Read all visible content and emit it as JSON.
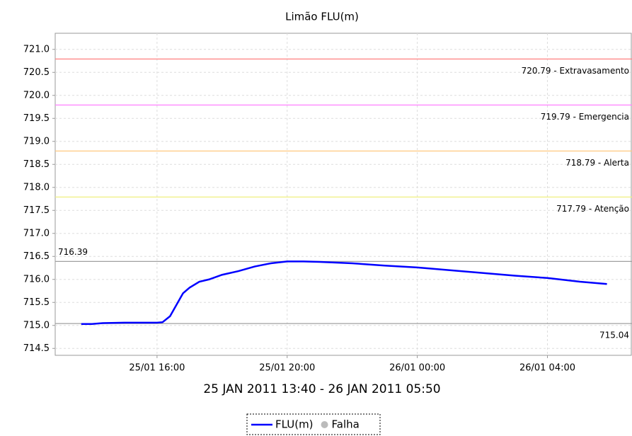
{
  "chart_data": {
    "type": "line",
    "title": "Limão FLU(m)",
    "x_label": "25 JAN 2011 13:40 - 26 JAN 2011 05:50",
    "x": [
      13.67,
      14.0,
      14.33,
      15.0,
      15.5,
      16.0,
      16.17,
      16.4,
      16.6,
      16.8,
      17.0,
      17.3,
      17.6,
      18.0,
      18.5,
      19.0,
      19.5,
      20.0,
      20.5,
      21.0,
      22.0,
      23.0,
      24.0,
      25.0,
      26.0,
      27.0,
      28.0,
      29.0,
      29.83
    ],
    "series": [
      {
        "name": "FLU(m)",
        "color": "#0000ff",
        "marker": "line",
        "values": [
          715.03,
          715.03,
          715.05,
          715.06,
          715.06,
          715.06,
          715.07,
          715.2,
          715.45,
          715.7,
          715.82,
          715.95,
          716.0,
          716.1,
          716.18,
          716.28,
          716.35,
          716.39,
          716.39,
          716.38,
          716.35,
          716.3,
          716.26,
          716.2,
          716.14,
          716.08,
          716.03,
          715.95,
          715.9
        ]
      },
      {
        "name": "Falha",
        "color": "#bbbbbb",
        "marker": "dot",
        "values": [
          null,
          null,
          null,
          null,
          null,
          null,
          null,
          null,
          null,
          null,
          null,
          null,
          null,
          null,
          null,
          null,
          null,
          null,
          null,
          null,
          null,
          null,
          null,
          null,
          null,
          null,
          null,
          null,
          null
        ]
      }
    ],
    "xlim": [
      12.87,
      30.6
    ],
    "xticks": [
      {
        "value": 16,
        "label": "25/01 16:00"
      },
      {
        "value": 20,
        "label": "25/01 20:00"
      },
      {
        "value": 24,
        "label": "26/01 00:00"
      },
      {
        "value": 28,
        "label": "26/01 04:00"
      }
    ],
    "ylim": [
      714.35,
      721.35
    ],
    "yticks": [
      714.5,
      {
        "value": 715,
        "label": "715.0"
      },
      715.5,
      {
        "value": 716,
        "label": "716.0"
      },
      716.5,
      {
        "value": 717,
        "label": "717.0"
      },
      717.5,
      {
        "value": 718,
        "label": "718.0"
      },
      718.5,
      {
        "value": 719,
        "label": "719.0"
      },
      719.5,
      {
        "value": 720,
        "label": "720.0"
      },
      720.5,
      {
        "value": 721,
        "label": "721.0"
      }
    ],
    "grid": true,
    "reference_lines": [
      {
        "value": 720.79,
        "label": "720.79 - Extravasamento",
        "color": "#ff8080",
        "label_corner": "lower-right"
      },
      {
        "value": 719.79,
        "label": "719.79 - Emergencia",
        "color": "#ff80ff",
        "label_corner": "lower-right"
      },
      {
        "value": 718.79,
        "label": "718.79 - Alerta",
        "color": "#ffc880",
        "label_corner": "lower-right"
      },
      {
        "value": 717.79,
        "label": "717.79 - Atenção",
        "color": "#f0f080",
        "label_corner": "lower-right"
      },
      {
        "value": 716.39,
        "label": "716.39",
        "color": "#a0a0a0",
        "label_corner": "upper-left"
      },
      {
        "value": 715.04,
        "label": "715.04",
        "color": "#a0a0a0",
        "label_corner": "lower-right"
      }
    ],
    "legend": "bottom"
  }
}
